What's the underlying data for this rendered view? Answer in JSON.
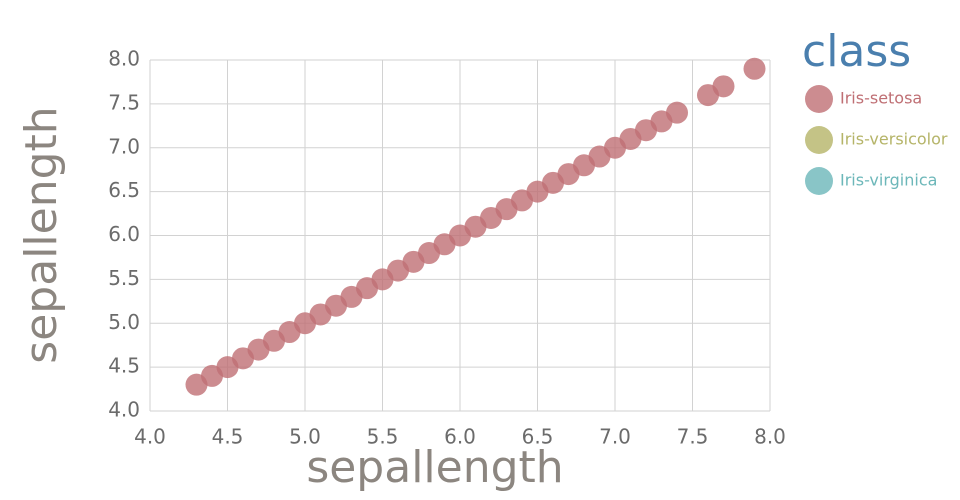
{
  "chart_data": {
    "type": "scatter",
    "x_label": "sepallength",
    "y_label": "sepallength",
    "legend_title": "class",
    "xlim": [
      4.0,
      8.0
    ],
    "ylim": [
      4.0,
      8.0
    ],
    "xticks": [
      {
        "value": 4,
        "label": "4.0"
      },
      4.5,
      {
        "value": 5,
        "label": "5.0"
      },
      5.5,
      {
        "value": 6,
        "label": "6.0"
      },
      6.5,
      {
        "value": 7,
        "label": "7.0"
      },
      7.5,
      {
        "value": 8,
        "label": "8.0"
      }
    ],
    "yticks": [
      {
        "value": 4,
        "label": "4.0"
      },
      4.5,
      {
        "value": 5,
        "label": "5.0"
      },
      5.5,
      {
        "value": 6,
        "label": "6.0"
      },
      6.5,
      {
        "value": 7,
        "label": "7.0"
      },
      7.5,
      {
        "value": 8,
        "label": "8.0"
      }
    ],
    "grid": true,
    "legend": "right",
    "series": [
      {
        "name": "Iris-setosa",
        "color": "#bf6f74",
        "x": [
          4.3,
          4.4,
          4.5,
          4.6,
          4.7,
          4.8,
          4.9,
          5.0,
          5.1,
          5.2,
          5.3,
          5.4,
          5.5,
          5.6,
          5.7,
          5.8,
          5.9,
          6.0,
          6.1,
          6.2,
          6.3,
          6.4,
          6.5,
          6.6,
          6.7,
          6.8,
          6.9,
          7.0,
          7.1,
          7.2,
          7.3,
          7.4,
          7.6,
          7.7,
          7.9
        ],
        "values": [
          4.3,
          4.4,
          4.5,
          4.6,
          4.7,
          4.8,
          4.9,
          5.0,
          5.1,
          5.2,
          5.3,
          5.4,
          5.5,
          5.6,
          5.7,
          5.8,
          5.9,
          6.0,
          6.1,
          6.2,
          6.3,
          6.4,
          6.5,
          6.6,
          6.7,
          6.8,
          6.9,
          7.0,
          7.1,
          7.2,
          7.3,
          7.4,
          7.6,
          7.7,
          7.9
        ]
      },
      {
        "name": "Iris-versicolor",
        "color": "#b5b468",
        "x": [],
        "values": []
      },
      {
        "name": "Iris-virginica",
        "color": "#6cb7b9",
        "x": [],
        "values": []
      }
    ]
  }
}
